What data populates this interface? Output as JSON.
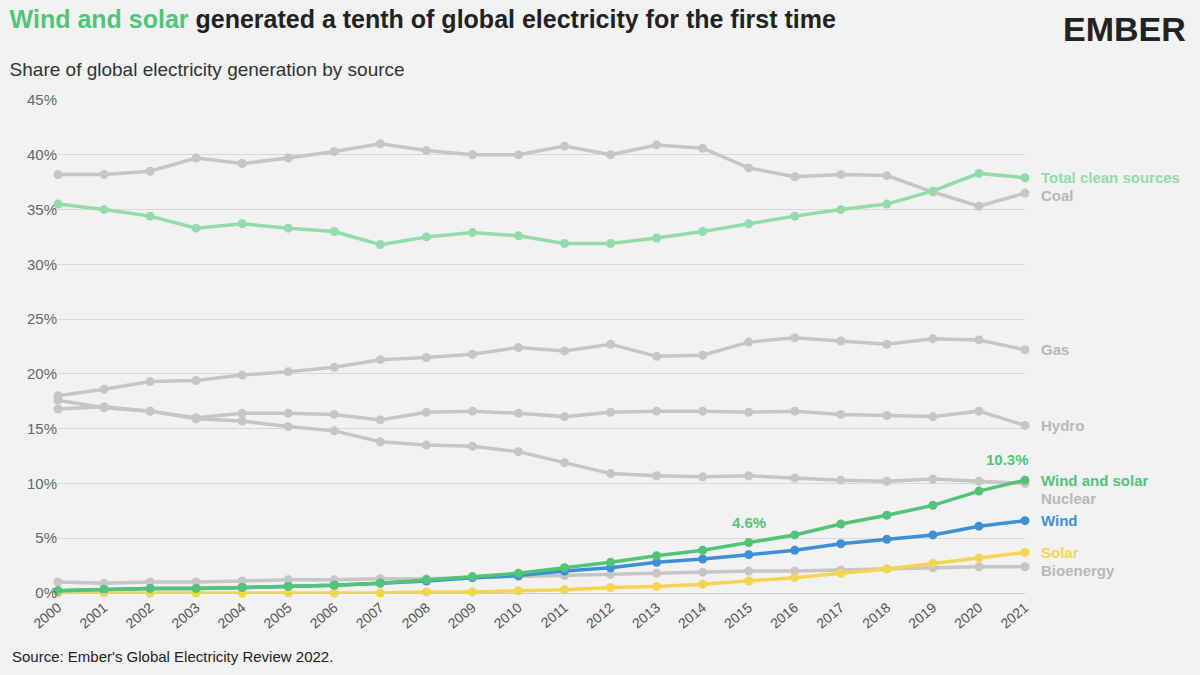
{
  "chart_data": {
    "type": "line",
    "title": "Wind and solar generated a tenth of global electricity for the first time",
    "subtitle": "Share of global electricity generation by source",
    "source": "Source: Ember's Global Electricity Review 2022.",
    "logo": "EMBER",
    "marker": "circle",
    "grid": true,
    "x": [
      2000,
      2001,
      2002,
      2003,
      2004,
      2005,
      2006,
      2007,
      2008,
      2009,
      2010,
      2011,
      2012,
      2013,
      2014,
      2015,
      2016,
      2017,
      2018,
      2019,
      2020,
      2021
    ],
    "xlim": [
      2000,
      2021
    ],
    "xticks": [
      2000,
      2001,
      2002,
      2003,
      2004,
      2005,
      2006,
      2007,
      2008,
      2009,
      2010,
      2011,
      2012,
      2013,
      2014,
      2015,
      2016,
      2017,
      2018,
      2019,
      2020,
      2021
    ],
    "ylim": [
      0,
      45
    ],
    "yticks": [
      {
        "value": 0,
        "label": "0%"
      },
      {
        "value": 5,
        "label": "5%"
      },
      {
        "value": 10,
        "label": "10%"
      },
      {
        "value": 15,
        "label": "15%"
      },
      {
        "value": 20,
        "label": "20%"
      },
      {
        "value": 25,
        "label": "25%"
      },
      {
        "value": 30,
        "label": "30%"
      },
      {
        "value": 35,
        "label": "35%"
      },
      {
        "value": 40,
        "label": "40%"
      },
      {
        "value": 45,
        "label": "45%"
      }
    ],
    "series": [
      {
        "name": "Coal",
        "color": "#c6c6c6",
        "values": [
          38.2,
          38.2,
          38.5,
          39.7,
          39.2,
          39.7,
          40.3,
          41.0,
          40.4,
          40.0,
          40.0,
          40.8,
          40.0,
          40.9,
          40.6,
          38.8,
          38.0,
          38.2,
          38.1,
          36.6,
          35.3,
          36.5
        ]
      },
      {
        "name": "Gas",
        "color": "#c6c6c6",
        "values": [
          18.0,
          18.6,
          19.3,
          19.4,
          19.9,
          20.2,
          20.6,
          21.3,
          21.5,
          21.8,
          22.4,
          22.1,
          22.7,
          21.6,
          21.7,
          22.9,
          23.3,
          23.0,
          22.7,
          23.2,
          23.1,
          22.2
        ]
      },
      {
        "name": "Hydro",
        "color": "#c6c6c6",
        "values": [
          16.8,
          17.0,
          16.6,
          16.0,
          16.4,
          16.4,
          16.3,
          15.8,
          16.5,
          16.6,
          16.4,
          16.1,
          16.5,
          16.6,
          16.6,
          16.5,
          16.6,
          16.3,
          16.2,
          16.1,
          16.6,
          15.3
        ]
      },
      {
        "name": "Nuclear",
        "color": "#c6c6c6",
        "values": [
          17.6,
          16.9,
          16.6,
          15.9,
          15.7,
          15.2,
          14.8,
          13.8,
          13.5,
          13.4,
          12.9,
          11.9,
          10.9,
          10.7,
          10.6,
          10.7,
          10.5,
          10.3,
          10.2,
          10.4,
          10.2,
          10.0
        ]
      },
      {
        "name": "Bioenergy",
        "color": "#c6c6c6",
        "values": [
          1.0,
          0.9,
          1.0,
          1.0,
          1.1,
          1.2,
          1.2,
          1.3,
          1.3,
          1.4,
          1.5,
          1.6,
          1.7,
          1.8,
          1.9,
          2.0,
          2.0,
          2.1,
          2.2,
          2.3,
          2.4,
          2.4
        ]
      },
      {
        "name": "Total clean sources",
        "color": "#93dcaa",
        "values": [
          35.5,
          35.0,
          34.4,
          33.3,
          33.7,
          33.3,
          33.0,
          31.8,
          32.5,
          32.9,
          32.6,
          31.9,
          31.9,
          32.4,
          33.0,
          33.7,
          34.4,
          35.0,
          35.5,
          36.7,
          38.3,
          37.9
        ]
      },
      {
        "name": "Wind",
        "color": "#3d8fd6",
        "values": [
          0.2,
          0.3,
          0.4,
          0.4,
          0.5,
          0.6,
          0.7,
          0.9,
          1.1,
          1.4,
          1.6,
          2.0,
          2.3,
          2.8,
          3.1,
          3.5,
          3.9,
          4.5,
          4.9,
          5.3,
          6.1,
          6.6
        ]
      },
      {
        "name": "Solar",
        "color": "#f5d54f",
        "values": [
          0.0,
          0.0,
          0.0,
          0.0,
          0.0,
          0.0,
          0.0,
          0.0,
          0.1,
          0.1,
          0.2,
          0.3,
          0.5,
          0.6,
          0.8,
          1.1,
          1.4,
          1.8,
          2.2,
          2.7,
          3.2,
          3.7
        ]
      },
      {
        "name": "Wind and solar",
        "color": "#52c477",
        "values": [
          0.2,
          0.3,
          0.4,
          0.4,
          0.5,
          0.6,
          0.7,
          0.9,
          1.2,
          1.5,
          1.8,
          2.3,
          2.8,
          3.4,
          3.9,
          4.6,
          5.3,
          6.3,
          7.1,
          8.0,
          9.3,
          10.3
        ]
      }
    ],
    "annotations": [
      {
        "text": "4.6%",
        "x": 2015,
        "y": 4.6
      },
      {
        "text": "10.3%",
        "x": 2021,
        "y": 10.3
      }
    ]
  }
}
